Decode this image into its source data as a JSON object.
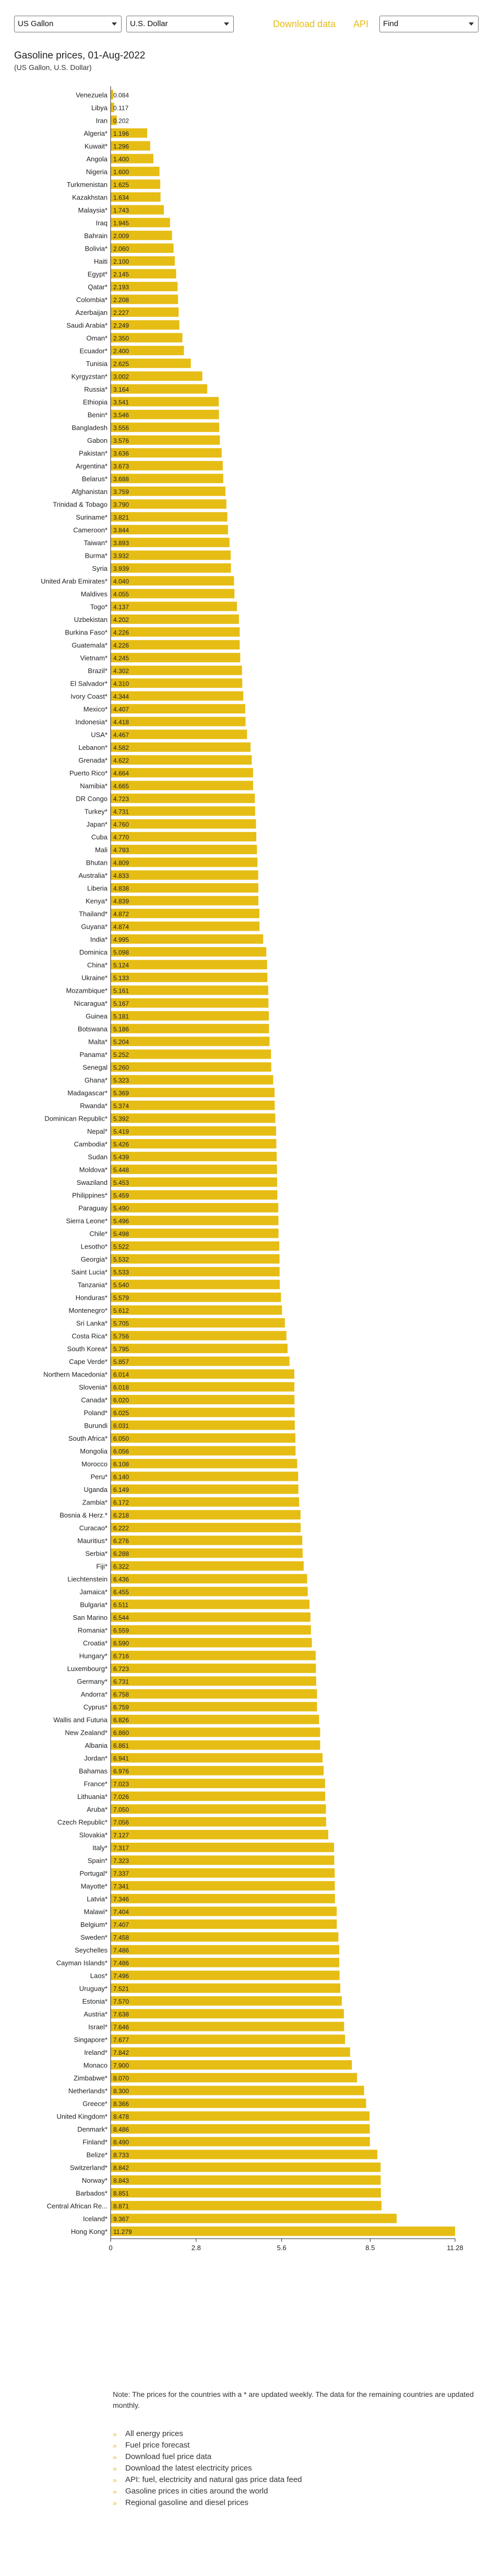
{
  "controls": {
    "unit_select": "US Gallon",
    "currency_select": "U.S. Dollar",
    "download_link": "Download data",
    "api_link": "API",
    "find_select": "Find"
  },
  "colors": {
    "bar": "#e6bd14",
    "accent": "#e6bd14",
    "axis": "#222222"
  },
  "chart_data": {
    "type": "bar",
    "orientation": "horizontal",
    "title": "Gasoline prices, 01-Aug-2022",
    "subtitle": "(US Gallon, U.S. Dollar)",
    "xlabel": "",
    "ylabel": "",
    "xlim": [
      0,
      11.28
    ],
    "xticks": [
      "0",
      "2.8",
      "5.6",
      "8.5",
      "11.28"
    ],
    "xtick_values": [
      0,
      2.8,
      5.6,
      8.5,
      11.28
    ],
    "grid": false,
    "legend": "none",
    "categories": [
      "Venezuela",
      "Libya",
      "Iran",
      "Algeria*",
      "Kuwait*",
      "Angola",
      "Nigeria",
      "Turkmenistan",
      "Kazakhstan",
      "Malaysia*",
      "Iraq",
      "Bahrain",
      "Bolivia*",
      "Haiti",
      "Egypt*",
      "Qatar*",
      "Colombia*",
      "Azerbaijan",
      "Saudi Arabia*",
      "Oman*",
      "Ecuador*",
      "Tunisia",
      "Kyrgyzstan*",
      "Russia*",
      "Ethiopia",
      "Benin*",
      "Bangladesh",
      "Gabon",
      "Pakistan*",
      "Argentina*",
      "Belarus*",
      "Afghanistan",
      "Trinidad & Tobago",
      "Suriname*",
      "Cameroon*",
      "Taiwan*",
      "Burma*",
      "Syria",
      "United Arab Emirates*",
      "Maldives",
      "Togo*",
      "Uzbekistan",
      "Burkina Faso*",
      "Guatemala*",
      "Vietnam*",
      "Brazil*",
      "El Salvador*",
      "Ivory Coast*",
      "Mexico*",
      "Indonesia*",
      "USA*",
      "Lebanon*",
      "Grenada*",
      "Puerto Rico*",
      "Namibia*",
      "DR Congo",
      "Turkey*",
      "Japan*",
      "Cuba",
      "Mali",
      "Bhutan",
      "Australia*",
      "Liberia",
      "Kenya*",
      "Thailand*",
      "Guyana*",
      "India*",
      "Dominica",
      "China*",
      "Ukraine*",
      "Mozambique*",
      "Nicaragua*",
      "Guinea",
      "Botswana",
      "Malta*",
      "Panama*",
      "Senegal",
      "Ghana*",
      "Madagascar*",
      "Rwanda*",
      "Dominican Republic*",
      "Nepal*",
      "Cambodia*",
      "Sudan",
      "Moldova*",
      "Swaziland",
      "Philippines*",
      "Paraguay",
      "Sierra Leone*",
      "Chile*",
      "Lesotho*",
      "Georgia*",
      "Saint Lucia*",
      "Tanzania*",
      "Honduras*",
      "Montenegro*",
      "Sri Lanka*",
      "Costa Rica*",
      "South Korea*",
      "Cape Verde*",
      "Northern Macedonia*",
      "Slovenia*",
      "Canada*",
      "Poland*",
      "Burundi",
      "South Africa*",
      "Mongolia",
      "Morocco",
      "Peru*",
      "Uganda",
      "Zambia*",
      "Bosnia & Herz.*",
      "Curacao*",
      "Mauritius*",
      "Serbia*",
      "Fiji*",
      "Liechtenstein",
      "Jamaica*",
      "Bulgaria*",
      "San Marino",
      "Romania*",
      "Croatia*",
      "Hungary*",
      "Luxembourg*",
      "Germany*",
      "Andorra*",
      "Cyprus*",
      "Wallis and Futuna",
      "New Zealand*",
      "Albania",
      "Jordan*",
      "Bahamas",
      "France*",
      "Lithuania*",
      "Aruba*",
      "Czech Republic*",
      "Slovakia*",
      "Italy*",
      "Spain*",
      "Portugal*",
      "Mayotte*",
      "Latvia*",
      "Malawi*",
      "Belgium*",
      "Sweden*",
      "Seychelles",
      "Cayman Islands*",
      "Laos*",
      "Uruguay*",
      "Estonia*",
      "Austria*",
      "Israel*",
      "Singapore*",
      "Ireland*",
      "Monaco",
      "Zimbabwe*",
      "Netherlands*",
      "Greece*",
      "United Kingdom*",
      "Denmark*",
      "Finland*",
      "Belize*",
      "Switzerland*",
      "Norway*",
      "Barbados*",
      "Central African Re...",
      "Iceland*",
      "Hong Kong*"
    ],
    "values": [
      0.084,
      0.117,
      0.202,
      1.196,
      1.296,
      1.4,
      1.6,
      1.625,
      1.634,
      1.743,
      1.945,
      2.009,
      2.06,
      2.1,
      2.145,
      2.193,
      2.208,
      2.227,
      2.249,
      2.35,
      2.4,
      2.625,
      3.002,
      3.164,
      3.541,
      3.546,
      3.556,
      3.576,
      3.636,
      3.673,
      3.688,
      3.759,
      3.79,
      3.821,
      3.844,
      3.893,
      3.932,
      3.939,
      4.04,
      4.055,
      4.137,
      4.202,
      4.226,
      4.226,
      4.245,
      4.302,
      4.31,
      4.344,
      4.407,
      4.418,
      4.467,
      4.582,
      4.622,
      4.664,
      4.665,
      4.723,
      4.731,
      4.76,
      4.77,
      4.793,
      4.809,
      4.833,
      4.838,
      4.839,
      4.872,
      4.874,
      4.995,
      5.098,
      5.124,
      5.133,
      5.161,
      5.167,
      5.181,
      5.186,
      5.204,
      5.252,
      5.26,
      5.323,
      5.369,
      5.374,
      5.392,
      5.419,
      5.426,
      5.439,
      5.448,
      5.453,
      5.459,
      5.49,
      5.496,
      5.498,
      5.522,
      5.532,
      5.533,
      5.54,
      5.579,
      5.612,
      5.705,
      5.756,
      5.795,
      5.857,
      6.014,
      6.018,
      6.02,
      6.025,
      6.031,
      6.05,
      6.056,
      6.108,
      6.14,
      6.149,
      6.172,
      6.218,
      6.222,
      6.276,
      6.288,
      6.322,
      6.436,
      6.455,
      6.511,
      6.544,
      6.559,
      6.59,
      6.716,
      6.723,
      6.731,
      6.758,
      6.759,
      6.826,
      6.86,
      6.861,
      6.941,
      6.976,
      7.023,
      7.026,
      7.05,
      7.056,
      7.127,
      7.317,
      7.323,
      7.337,
      7.341,
      7.346,
      7.404,
      7.407,
      7.458,
      7.486,
      7.486,
      7.496,
      7.521,
      7.57,
      7.638,
      7.646,
      7.677,
      7.842,
      7.9,
      8.07,
      8.3,
      8.366,
      8.478,
      8.486,
      8.49,
      8.733,
      8.842,
      8.843,
      8.851,
      8.871,
      9.367,
      11.279
    ],
    "value_labels": [
      "0.084",
      "0.117",
      "0.202",
      "1.196",
      "1.296",
      "1.400",
      "1.600",
      "1.625",
      "1.634",
      "1.743",
      "1.945",
      "2.009",
      "2.060",
      "2.100",
      "2.145",
      "2.193",
      "2.208",
      "2.227",
      "2.249",
      "2.350",
      "2.400",
      "2.625",
      "3.002",
      "3.164",
      "3.541",
      "3.546",
      "3.556",
      "3.576",
      "3.636",
      "3.673",
      "3.688",
      "3.759",
      "3.790",
      "3.821",
      "3.844",
      "3.893",
      "3.932",
      "3.939",
      "4.040",
      "4.055",
      "4.137",
      "4.202",
      "4.226",
      "4.226",
      "4.245",
      "4.302",
      "4.310",
      "4.344",
      "4.407",
      "4.418",
      "4.467",
      "4.582",
      "4.622",
      "4.664",
      "4.665",
      "4.723",
      "4.731",
      "4.760",
      "4.770",
      "4.793",
      "4.809",
      "4.833",
      "4.838",
      "4.839",
      "4.872",
      "4.874",
      "4.995",
      "5.098",
      "5.124",
      "5.133",
      "5.161",
      "5.167",
      "5.181",
      "5.186",
      "5.204",
      "5.252",
      "5.260",
      "5.323",
      "5.369",
      "5.374",
      "5.392",
      "5.419",
      "5.426",
      "5.439",
      "5.448",
      "5.453",
      "5.459",
      "5.490",
      "5.496",
      "5.498",
      "5.522",
      "5.532",
      "5.533",
      "5.540",
      "5.579",
      "5.612",
      "5.705",
      "5.756",
      "5.795",
      "5.857",
      "6.014",
      "6.018",
      "6.020",
      "6.025",
      "6.031",
      "6.050",
      "6.056",
      "6.108",
      "6.140",
      "6.149",
      "6.172",
      "6.218",
      "6.222",
      "6.276",
      "6.288",
      "6.322",
      "6.436",
      "6.455",
      "6.511",
      "6.544",
      "6.559",
      "6.590",
      "6.716",
      "6.723",
      "6.731",
      "6.758",
      "6.759",
      "6.826",
      "6.860",
      "6.861",
      "6.941",
      "6.976",
      "7.023",
      "7.026",
      "7.050",
      "7.056",
      "7.127",
      "7.317",
      "7.323",
      "7.337",
      "7.341",
      "7.346",
      "7.404",
      "7.407",
      "7.458",
      "7.486",
      "7.486",
      "7.496",
      "7.521",
      "7.570",
      "7.638",
      "7.646",
      "7.677",
      "7.842",
      "7.900",
      "8.070",
      "8.300",
      "8.366",
      "8.478",
      "8.486",
      "8.490",
      "8.733",
      "8.842",
      "8.843",
      "8.851",
      "8.871",
      "9.367",
      "11.279"
    ]
  },
  "note": "Note: The prices for the countries with a * are updated weekly. The data for the remaining countries are updated monthly.",
  "links": [
    "All energy prices",
    "Fuel price forecast",
    "Download fuel price data",
    "Download the latest electricity prices",
    "API: fuel, electricity and natural gas price data feed",
    "Gasoline prices in cities around the world",
    "Regional gasoline and diesel prices"
  ]
}
